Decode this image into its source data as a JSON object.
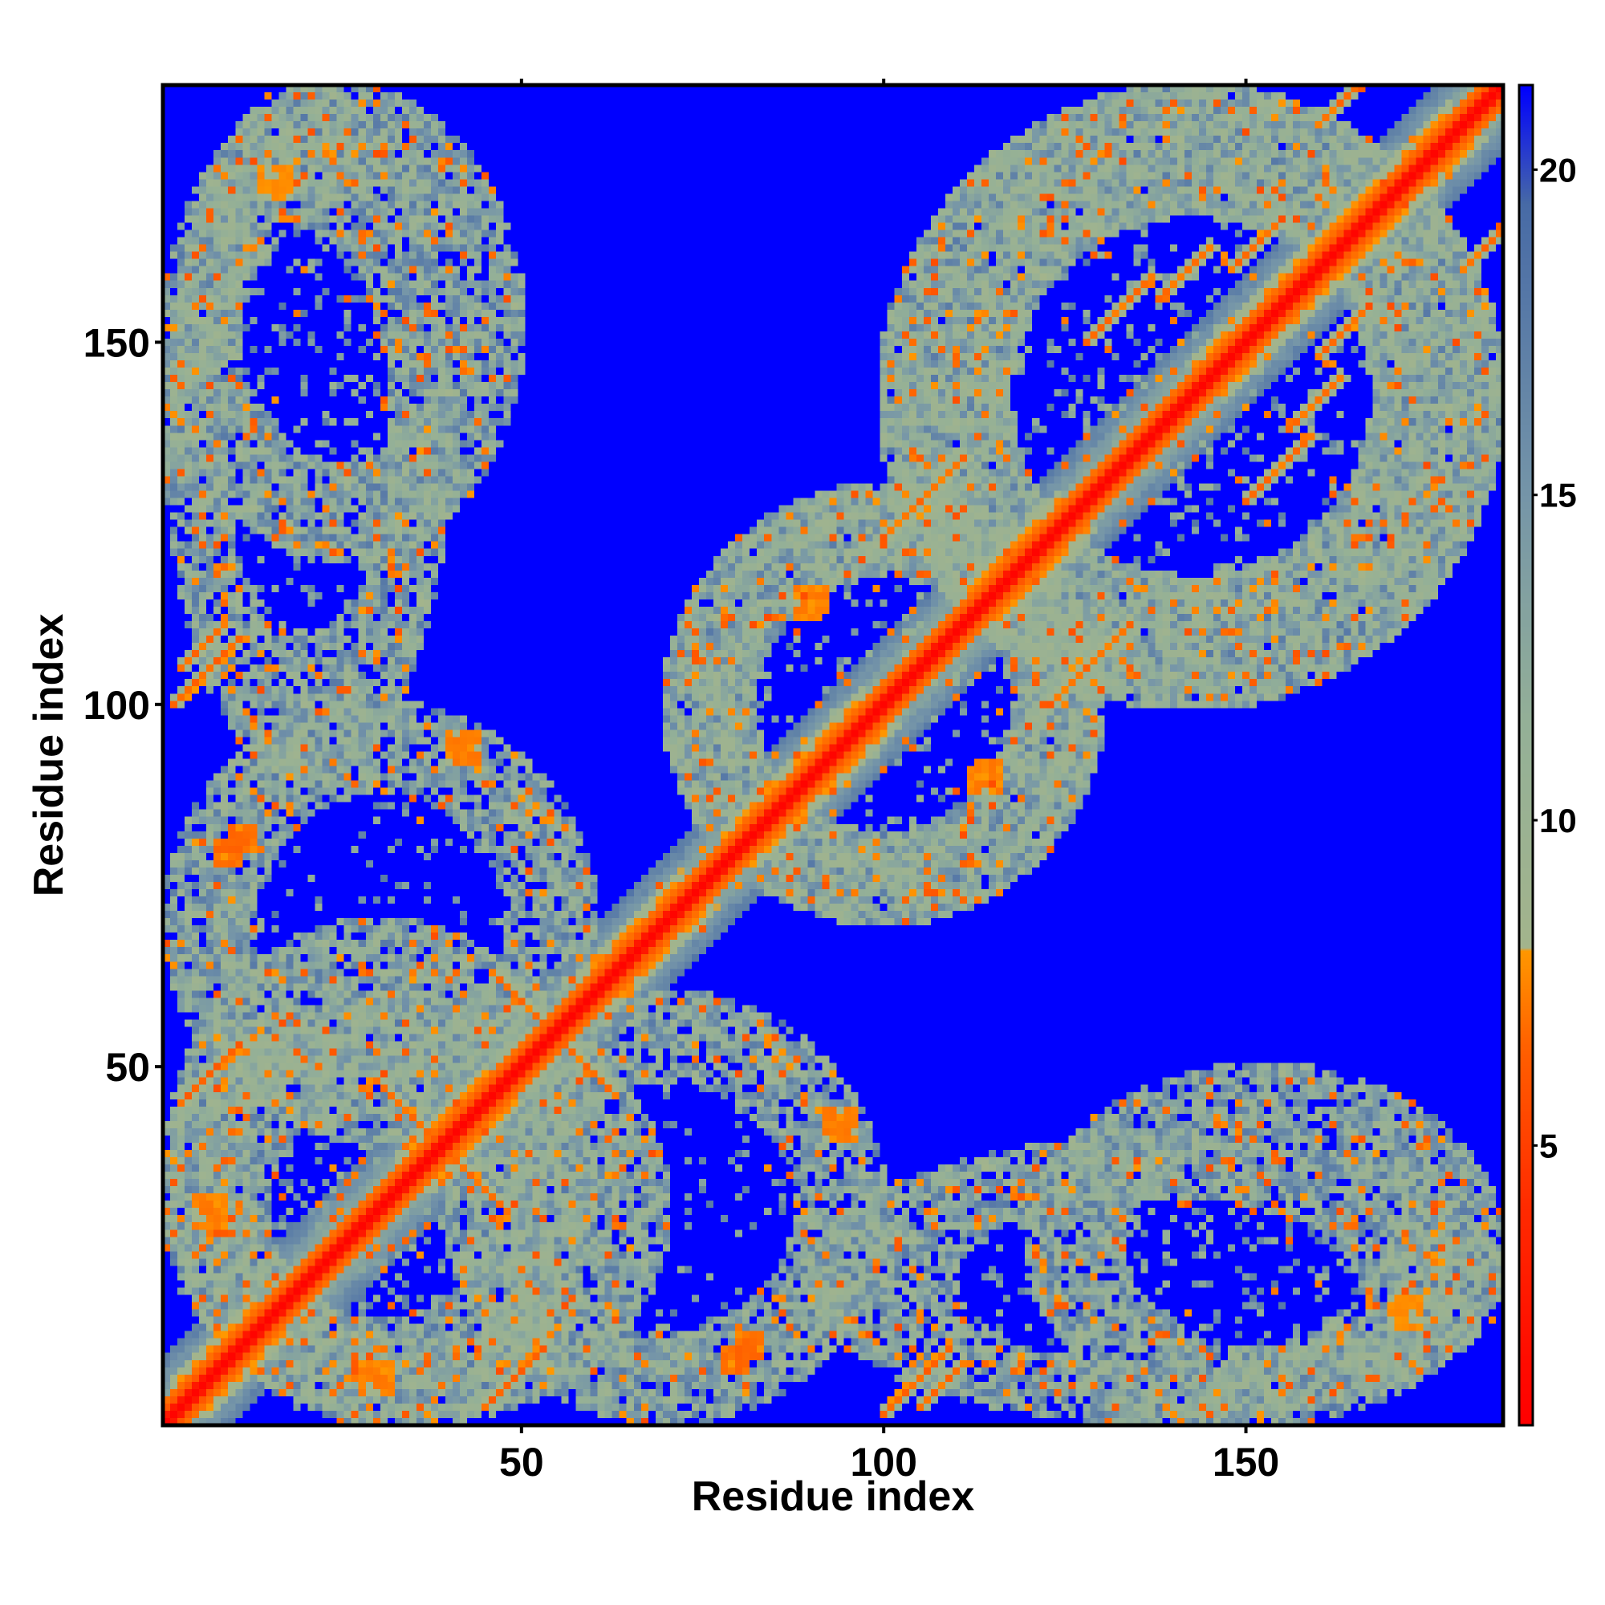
{
  "chart_data": {
    "type": "heatmap",
    "title": "",
    "description_of_matrix": "",
    "xlabel": "Residue index",
    "ylabel": "Residue index",
    "n_residues": 185,
    "x_range": [
      1,
      185
    ],
    "y_range": [
      1,
      185
    ],
    "x_ticks": [
      50,
      100,
      150
    ],
    "y_ticks": [
      50,
      100,
      150
    ],
    "x_tick_labels": [
      "50",
      "100",
      "150"
    ],
    "y_tick_labels": [
      "50",
      "100",
      "150"
    ],
    "colorbar": {
      "range": [
        0.7,
        21.3
      ],
      "ticks": [
        5,
        10,
        15,
        20
      ],
      "tick_labels": [
        "5",
        "10",
        "15",
        "20"
      ],
      "position": "right",
      "colors": [
        {
          "value": 0.7,
          "color": "#ff0000"
        },
        {
          "value": 4.0,
          "color": "#ff2a00"
        },
        {
          "value": 6.5,
          "color": "#ff6000"
        },
        {
          "value": 8.0,
          "color": "#ff9800"
        },
        {
          "value": 8.01,
          "color": "#a3b48c"
        },
        {
          "value": 11.5,
          "color": "#94b097"
        },
        {
          "value": 15.0,
          "color": "#7595a8"
        },
        {
          "value": 19.5,
          "color": "#476aa6"
        },
        {
          "value": 21.3,
          "color": "#0000ff"
        }
      ]
    },
    "background_value": 21.3,
    "diagonal": {
      "value": 1.0,
      "band_width": 2
    },
    "helix_segments": [
      [
        2,
        13
      ],
      [
        33,
        45
      ],
      [
        58,
        72
      ],
      [
        78,
        97
      ],
      [
        112,
        124
      ],
      [
        143,
        178
      ]
    ],
    "contact_features": [
      {
        "i": 30,
        "j": 48,
        "value": 6.5,
        "kind": "antiparallel",
        "length": 14
      },
      {
        "i": 46,
        "j": 63,
        "value": 6.5,
        "kind": "antiparallel",
        "length": 12
      },
      {
        "i": 3,
        "j": 45,
        "value": 6.0,
        "kind": "parallel",
        "length": 9
      },
      {
        "i": 3,
        "j": 105,
        "value": 6.5,
        "kind": "parallel",
        "length": 7
      },
      {
        "i": 2,
        "j": 100,
        "value": 6.0,
        "kind": "parallel",
        "length": 10
      },
      {
        "i": 100,
        "j": 123,
        "value": 6.5,
        "kind": "parallel",
        "length": 12
      },
      {
        "i": 128,
        "j": 150,
        "value": 6.5,
        "kind": "parallel",
        "length": 10
      },
      {
        "i": 138,
        "j": 156,
        "value": 6.5,
        "kind": "parallel",
        "length": 8
      },
      {
        "i": 148,
        "j": 160,
        "value": 6.5,
        "kind": "parallel",
        "length": 8
      },
      {
        "i": 160,
        "j": 180,
        "value": 6.5,
        "kind": "parallel",
        "length": 6
      },
      {
        "i": 10,
        "j": 80,
        "value": 6.5,
        "kind": "blob",
        "length": 4
      },
      {
        "i": 78,
        "j": 8,
        "value": 6.5,
        "kind": "blob",
        "length": 4
      },
      {
        "i": 40,
        "j": 92,
        "value": 7.0,
        "kind": "blob",
        "length": 5
      },
      {
        "i": 88,
        "j": 112,
        "value": 7.0,
        "kind": "blob",
        "length": 5
      },
      {
        "i": 14,
        "j": 170,
        "value": 7.5,
        "kind": "blob",
        "length": 5
      },
      {
        "i": 5,
        "j": 28,
        "value": 7.0,
        "kind": "blob",
        "length": 5
      }
    ],
    "halo_regions": [
      {
        "i0": 1,
        "i1": 60,
        "j0": 1,
        "j1": 70
      },
      {
        "i0": 70,
        "i1": 130,
        "j0": 70,
        "j1": 130
      },
      {
        "i0": 100,
        "i1": 185,
        "j0": 100,
        "j1": 185
      },
      {
        "i0": 1,
        "i1": 40,
        "j0": 90,
        "j1": 185
      },
      {
        "i0": 40,
        "i1": 100,
        "j0": 1,
        "j1": 60
      },
      {
        "i0": 120,
        "i1": 185,
        "j0": 1,
        "j1": 50
      }
    ],
    "grid": false,
    "legend": "none"
  }
}
